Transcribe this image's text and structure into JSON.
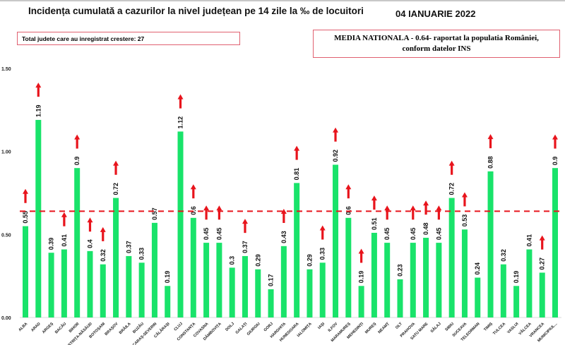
{
  "chart_data": {
    "type": "bar",
    "title": "Incidența cumulată a cazurilor la nivel județean pe 14 zile la ‰ de locuitori",
    "date": "04 IANUARIE 2022",
    "note_increase": "Total judete care au inregistrat crestere: 27",
    "note_national_line1": "MEDIA NATIONALA - 0.64-  raportat la populatia României,",
    "note_national_line2": "conform datelor INS",
    "national_average": 0.64,
    "ylim": [
      0,
      1.5
    ],
    "yticks": [
      "0.00",
      "0.50",
      "1.00",
      "1.50"
    ],
    "ytick_values": [
      0,
      0.5,
      1.0,
      1.5
    ],
    "grid": false,
    "bar_color": "#19e36a",
    "average_line_color": "#e8141c",
    "arrow_color": "#e8141c",
    "categories": [
      "ALBA",
      "ARAD",
      "ARGEȘ",
      "BACĂU",
      "BIHOR",
      "BISTRIȚA-NĂSĂUD",
      "BOTOȘANI",
      "BRAȘOV",
      "BRĂILA",
      "BUZĂU",
      "CARAȘ-SEVERIN",
      "CĂLĂRAȘI",
      "CLUJ",
      "CONSTANȚA",
      "COVASNA",
      "DÂMBOVIȚA",
      "DOLJ",
      "GALAȚI",
      "GIURGIU",
      "GORJ",
      "HARGHITA",
      "HUNEDOARA",
      "IALOMIȚA",
      "IAȘI",
      "ILFOV",
      "MARAMUREȘ",
      "MEHEDINȚI",
      "MUREȘ",
      "NEAMȚ",
      "OLT",
      "PRAHOVA",
      "SATU MARE",
      "SĂLAJ",
      "SIBIU",
      "SUCEAVA",
      "TELEORMAN",
      "TIMIȘ",
      "TULCEA",
      "VASLUI",
      "VÂLCEA",
      "VRANCEA",
      "MUNICIPIUL..."
    ],
    "values": [
      0.55,
      1.19,
      0.39,
      0.41,
      0.9,
      0.4,
      0.32,
      0.72,
      0.37,
      0.33,
      0.57,
      0.19,
      1.12,
      0.6,
      0.45,
      0.45,
      0.3,
      0.37,
      0.29,
      0.17,
      0.43,
      0.81,
      0.29,
      0.33,
      0.92,
      0.6,
      0.19,
      0.51,
      0.45,
      0.23,
      0.45,
      0.48,
      0.45,
      0.72,
      0.53,
      0.24,
      0.88,
      0.32,
      0.19,
      0.41,
      0.27,
      0.9
    ],
    "increase": [
      true,
      true,
      false,
      true,
      true,
      true,
      true,
      true,
      false,
      false,
      false,
      false,
      true,
      true,
      true,
      true,
      false,
      true,
      false,
      false,
      true,
      true,
      false,
      true,
      true,
      true,
      true,
      true,
      true,
      false,
      true,
      true,
      true,
      true,
      true,
      false,
      true,
      false,
      false,
      false,
      true,
      true
    ]
  }
}
